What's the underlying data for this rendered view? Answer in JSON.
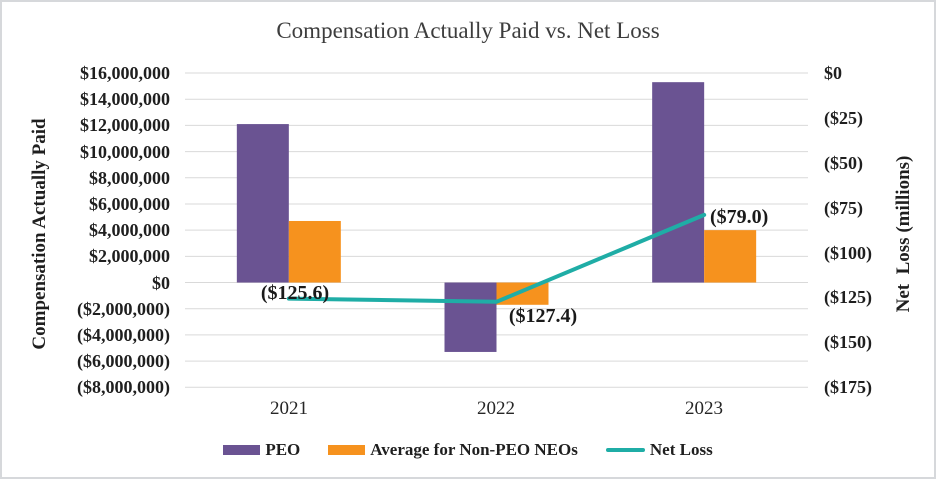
{
  "title": "Compensation Actually Paid vs. Net Loss",
  "chart_data": {
    "type": "combo-bar-line",
    "title": "Compensation Actually Paid vs. Net Loss",
    "categories": [
      "2021",
      "2022",
      "2023"
    ],
    "bar_series": [
      {
        "name": "PEO",
        "color": "#6A5392",
        "values": [
          12100000,
          -5300000,
          15300000
        ]
      },
      {
        "name": "Average for Non-PEO NEOs",
        "color": "#F6921E",
        "values": [
          4700000,
          -1700000,
          4000000
        ]
      }
    ],
    "line_series": {
      "name": "Net Loss",
      "color": "#1FADA6",
      "axis": "right",
      "values": [
        -125.6,
        -127.4,
        -79.0
      ],
      "data_labels": [
        "($125.6)",
        "($127.4)",
        "($79.0)"
      ]
    },
    "left_axis": {
      "title": "Compensation Actually Paid",
      "min": -8000000,
      "max": 16000000,
      "tick_values": [
        16000000,
        14000000,
        12000000,
        10000000,
        8000000,
        6000000,
        4000000,
        2000000,
        0,
        -2000000,
        -4000000,
        -6000000,
        -8000000
      ],
      "tick_labels": [
        "$16,000,000",
        "$14,000,000",
        "$12,000,000",
        "$10,000,000",
        "$8,000,000",
        "$6,000,000",
        "$4,000,000",
        "$2,000,000",
        "$0",
        "($2,000,000)",
        "($4,000,000)",
        "($6,000,000)",
        "($8,000,000)"
      ]
    },
    "right_axis": {
      "title": "Net  Loss (millions)",
      "min": -175,
      "max": 0,
      "tick_values": [
        0,
        -25,
        -50,
        -75,
        -100,
        -125,
        -150,
        -175
      ],
      "tick_labels": [
        "$0",
        "($25)",
        "($50)",
        "($75)",
        "($100)",
        "($125)",
        "($150)",
        "($175)"
      ]
    },
    "grid": true,
    "grid_color": "#D9D9D9",
    "legend_position": "bottom"
  }
}
